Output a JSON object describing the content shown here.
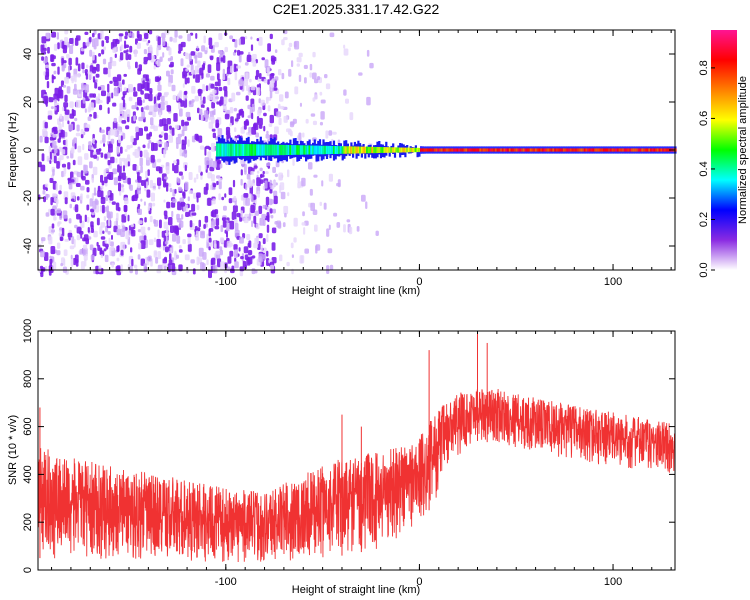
{
  "title": "C2E1.2025.331.17.42.G22",
  "chart_data": [
    {
      "type": "heatmap",
      "xlabel": "Height of straight line (km)",
      "ylabel": "Frequency (Hz)",
      "xlim": [
        -197,
        132
      ],
      "ylim": [
        -50,
        50
      ],
      "xticks": [
        -100,
        0,
        100
      ],
      "xtick_labels": [
        "-100",
        "0",
        "100"
      ],
      "yticks": [
        -40,
        -20,
        0,
        20,
        40
      ],
      "ytick_labels": [
        "-40",
        "-20",
        "0",
        "20",
        "40"
      ],
      "colorbar": {
        "label": "Normalized spectral amplitude",
        "range": [
          0,
          0.95
        ],
        "ticks": [
          0.0,
          0.2,
          0.4,
          0.6,
          0.8
        ],
        "tick_labels": [
          "0.0",
          "0.2",
          "0.4",
          "0.6",
          "0.8"
        ],
        "colormap": [
          "#ffffff",
          "#8a2be2",
          "#0000ff",
          "#00ffff",
          "#00ff00",
          "#ffff00",
          "#ff8000",
          "#ff0000",
          "#ff1493"
        ]
      },
      "features": {
        "noise_region_x": [
          -197,
          -75
        ],
        "sparse_noise_x": [
          -75,
          -20
        ],
        "signal_band_start_x": -105,
        "signal_band_center_hz": 0,
        "signal_band_halfwidth_hz": [
          5,
          1.5
        ]
      }
    },
    {
      "type": "line",
      "xlabel": "Height of straight line (km)",
      "ylabel": "SNR (10 * v/v)",
      "xlim": [
        -197,
        132
      ],
      "ylim": [
        0,
        1000
      ],
      "xticks": [
        -100,
        0,
        100
      ],
      "xtick_labels": [
        "-100",
        "0",
        "100"
      ],
      "yticks": [
        0,
        200,
        400,
        600,
        800,
        1000
      ],
      "ytick_labels": [
        "0",
        "200",
        "400",
        "600",
        "800",
        "1000"
      ],
      "series": [
        {
          "color": "#f03232",
          "envelope": {
            "x": [
              -197,
              -180,
              -150,
              -120,
              -100,
              -80,
              -60,
              -40,
              -20,
              0,
              10,
              20,
              30,
              40,
              60,
              80,
              100,
              120,
              132
            ],
            "upper": [
              520,
              470,
              420,
              380,
              340,
              330,
              400,
              470,
              500,
              560,
              680,
              740,
              770,
              760,
              720,
              690,
              660,
              630,
              620
            ],
            "lower": [
              50,
              45,
              40,
              35,
              30,
              30,
              40,
              60,
              90,
              180,
              320,
              480,
              540,
              530,
              490,
              460,
              430,
              410,
              400
            ]
          },
          "spikes": [
            {
              "x": -196,
              "y": 680
            },
            {
              "x": -40,
              "y": 650
            },
            {
              "x": 5,
              "y": 920
            },
            {
              "x": 30,
              "y": 1000
            },
            {
              "x": 35,
              "y": 950
            },
            {
              "x": -30,
              "y": 600
            }
          ]
        }
      ]
    }
  ]
}
